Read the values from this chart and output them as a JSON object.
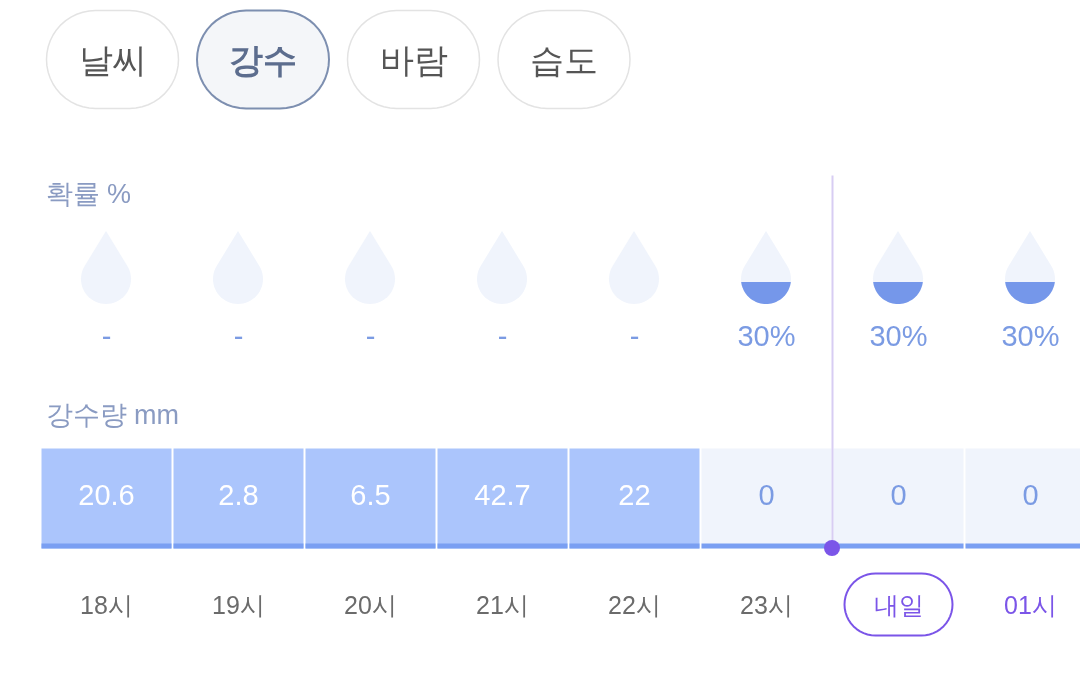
{
  "chart_data": [
    {
      "type": "other",
      "categories": [
        "날씨",
        "강수",
        "바람",
        "습도"
      ],
      "colors": [
        "#ffffff",
        "#f4f6f9",
        "#ffffff",
        "#ffffff"
      ]
    },
    {
      "type": "heatmap",
      "categories": [
        "18시",
        "19시",
        "20시",
        "21시",
        "22시",
        "23시",
        "내일",
        "01시"
      ],
      "y_categories": [
        "확률 %",
        "강수량 mm"
      ],
      "cells": [
        [
          null,
          null,
          null,
          null,
          null,
          30,
          30,
          30
        ],
        [
          20.6,
          2.8,
          6.5,
          42.7,
          22,
          0,
          0,
          0
        ]
      ],
      "cell_labels": [
        [
          "-",
          "-",
          "-",
          "-",
          "-",
          "30%",
          "30%",
          "30%"
        ],
        [
          "20.6",
          "2.8",
          "6.5",
          "42.7",
          "22",
          "0",
          "0",
          "0"
        ]
      ],
      "colors": [
        "#7597ea",
        "#7597ea",
        "#7597ea",
        "#7597ea",
        "#7597ea",
        "#7597ea",
        "#7597ea",
        "#7597ea",
        "#abc5fc",
        "#abc5fc",
        "#abc5fc",
        "#abc5fc",
        "#abc5fc",
        "#f0f4fc",
        "#f0f4fc",
        "#f0f4fc"
      ]
    }
  ]
}
